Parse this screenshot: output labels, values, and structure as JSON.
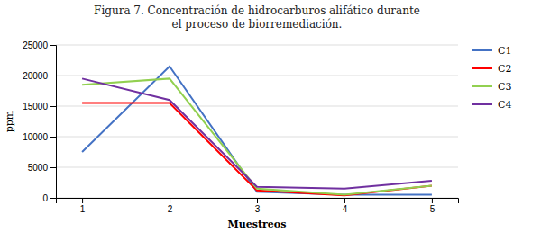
{
  "chart_data": {
    "type": "line",
    "title": "Figura 7. Concentración de hidrocarburos alifático durante\nel proceso de biorremediación.",
    "x": [
      1,
      2,
      3,
      4,
      5
    ],
    "series": [
      {
        "name": "C1",
        "color": "#4472C4",
        "values": [
          7500,
          21500,
          1000,
          500,
          500
        ]
      },
      {
        "name": "C2",
        "color": "#FF0000",
        "values": [
          15500,
          15500,
          1200,
          400,
          2000
        ]
      },
      {
        "name": "C3",
        "color": "#92D050",
        "values": [
          18500,
          19500,
          1500,
          500,
          2000
        ]
      },
      {
        "name": "C4",
        "color": "#7030A0",
        "values": [
          19500,
          16000,
          1800,
          1500,
          2800
        ]
      }
    ],
    "xlabel": "Muestreos",
    "ylabel": "ppm",
    "xlim": [
      0.7,
      5.3
    ],
    "xticks": [
      1,
      2,
      3,
      4,
      5
    ],
    "ylim": [
      0,
      25000
    ],
    "yticks": [
      0,
      5000,
      10000,
      15000,
      20000,
      25000
    ],
    "grid": true,
    "legend": "right"
  }
}
